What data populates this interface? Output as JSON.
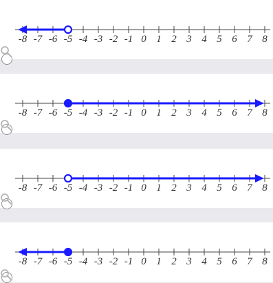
{
  "number_line": {
    "ticks": [
      "-8",
      "-7",
      "-6",
      "-5",
      "-4",
      "-3",
      "-2",
      "-1",
      "0",
      "1",
      "2",
      "3",
      "4",
      "5",
      "6",
      "7",
      "8"
    ],
    "axis_color": "#444444",
    "graph_color": "#1a1aff"
  },
  "options": [
    {
      "id": "option-1",
      "point": -5,
      "endpoint": "open",
      "direction": "left"
    },
    {
      "id": "option-2",
      "point": -5,
      "endpoint": "closed",
      "direction": "right"
    },
    {
      "id": "option-3",
      "point": -5,
      "endpoint": "open",
      "direction": "right"
    },
    {
      "id": "option-4",
      "point": -5,
      "endpoint": "closed",
      "direction": "left"
    }
  ],
  "icons": {
    "radio": "radio-button",
    "zoom": "magnifier-icon"
  }
}
